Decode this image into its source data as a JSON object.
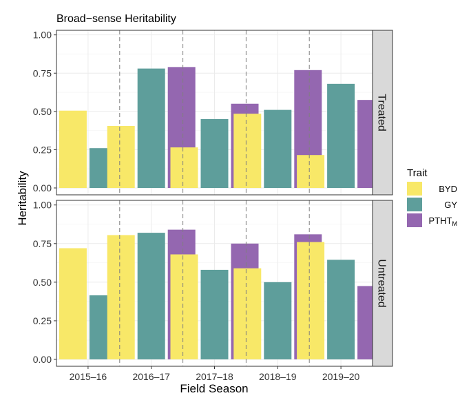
{
  "chart_data": {
    "type": "bar",
    "title": "Broad−sense Heritability",
    "xlabel": "Field Season",
    "ylabel": "Heritability",
    "ylim": [
      0,
      1.03
    ],
    "y_ticks": [
      "0.00",
      "0.25",
      "0.50",
      "0.75",
      "1.00"
    ],
    "categories": [
      "2015–16",
      "2016–17",
      "2017–18",
      "2018–19",
      "2019–20"
    ],
    "legend": {
      "title": "Trait",
      "position": "right",
      "items": [
        {
          "key": "BYD",
          "label": "BYD",
          "color": "#F8E868"
        },
        {
          "key": "GY",
          "label": "GY",
          "color": "#5E9E9B"
        },
        {
          "key": "PTHT",
          "label": "PTHT",
          "subscript": "M",
          "color": "#9467B0"
        }
      ]
    },
    "grid": true,
    "panels": [
      {
        "strip": "Treated",
        "series": [
          {
            "name": "BYD",
            "values": [
              0.505,
              0.405,
              0.265,
              0.485,
              0.215
            ]
          },
          {
            "name": "GY",
            "values": [
              0.26,
              0.78,
              0.45,
              0.51,
              0.68
            ]
          },
          {
            "name": "PTHT",
            "values": [
              null,
              0.79,
              0.55,
              0.77,
              0.575
            ]
          }
        ]
      },
      {
        "strip": "Untreated",
        "series": [
          {
            "name": "BYD",
            "values": [
              0.72,
              0.805,
              0.68,
              0.59,
              0.76
            ]
          },
          {
            "name": "GY",
            "values": [
              0.415,
              0.82,
              0.58,
              0.5,
              0.645
            ]
          },
          {
            "name": "PTHT",
            "values": [
              null,
              0.84,
              0.75,
              0.81,
              0.475
            ]
          }
        ]
      }
    ]
  }
}
